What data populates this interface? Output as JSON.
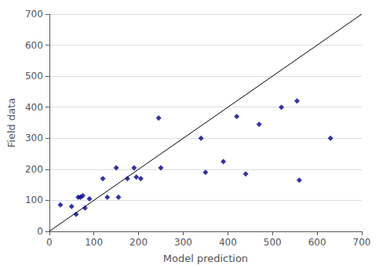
{
  "chart_data": {
    "type": "scatter",
    "xlabel": "Model prediction",
    "ylabel": "Field data",
    "xlim": [
      0,
      700
    ],
    "ylim": [
      0,
      700
    ],
    "xticks": [
      0,
      100,
      200,
      300,
      400,
      500,
      600,
      700
    ],
    "yticks": [
      0,
      100,
      200,
      300,
      400,
      500,
      600,
      700
    ],
    "grid": "y",
    "series": [
      {
        "type": "line",
        "x": [
          0,
          700
        ],
        "values": [
          0,
          700
        ],
        "color": "black",
        "line_style": "solid"
      },
      {
        "type": "scatter",
        "color": "#00008B",
        "marker": "diamond",
        "x": [
          25,
          50,
          60,
          65,
          70,
          75,
          80,
          90,
          120,
          130,
          150,
          155,
          175,
          190,
          195,
          205,
          245,
          250,
          340,
          350,
          390,
          420,
          440,
          470,
          520,
          555,
          560,
          630
        ],
        "values": [
          85,
          80,
          55,
          110,
          110,
          115,
          75,
          105,
          170,
          110,
          205,
          110,
          170,
          205,
          175,
          170,
          365,
          205,
          300,
          190,
          225,
          370,
          185,
          345,
          400,
          420,
          165,
          300
        ]
      }
    ]
  }
}
